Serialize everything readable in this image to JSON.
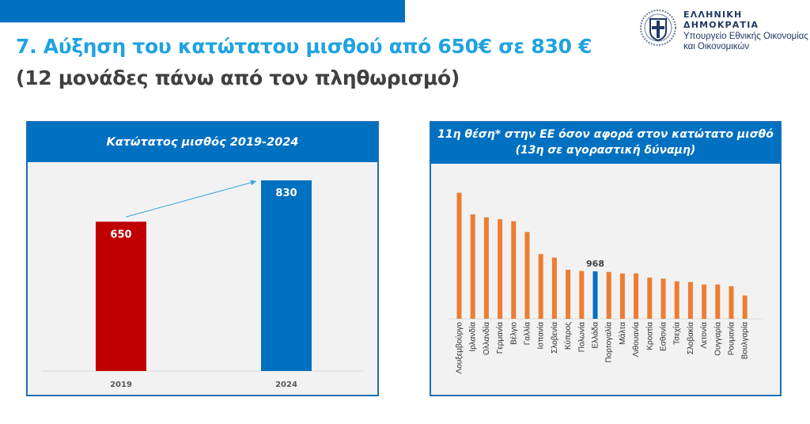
{
  "header": {
    "org_name": "ΕΛΛΗΝΙΚΗ ΔΗΜΟΚΡΑΤΙΑ",
    "ministry_line1": "Υπουργείο Εθνικής Οικονομίας",
    "ministry_line2": "και Οικονομικών",
    "logo_icon": "greek-coat-of-arms-icon"
  },
  "title": {
    "line1": "7. Αύξηση του κατώτατου μισθού από 650€ σε 830 €",
    "line2": "(12 μονάδες πάνω από τον πληθωρισμό)"
  },
  "colors": {
    "brand_blue": "#0070c0",
    "title_blue": "#1fa3e0",
    "red": "#c00000",
    "orange": "#ed7d31",
    "greece_blue": "#0070c0"
  },
  "chart_data": [
    {
      "type": "bar",
      "title": "Κατώτατος μισθός 2019-2024",
      "categories": [
        "2019",
        "2024"
      ],
      "values": [
        650,
        830
      ],
      "data_labels": [
        "650",
        "830"
      ],
      "bar_colors": [
        "#c00000",
        "#0070c0"
      ],
      "annotation": "arrow from 2019 bar to 2024 bar",
      "xlabel": "",
      "ylabel": "",
      "ylim": [
        0,
        900
      ],
      "grid": false
    },
    {
      "type": "bar",
      "title": "11η θέση* στην ΕΕ όσον αφορά στον κατώτατο μισθό",
      "subtitle": "(13η σε αγοραστική δύναμη)",
      "categories": [
        "Λουξεμβούργο",
        "Ιρλανδία",
        "Ολλανδία",
        "Γερμανία",
        "Βέλγιο",
        "Γαλλία",
        "Ισπανία",
        "Σλοβενία",
        "Κύπρος",
        "Πολωνία",
        "Ελλάδα",
        "Πορτογαλία",
        "Μάλτα",
        "Λιθουανία",
        "Κροατία",
        "Εσθονία",
        "Τσεχία",
        "Σλοβακία",
        "Λετονία",
        "Ουγγαρία",
        "Ρουμανία",
        "Βουλγαρία"
      ],
      "values": [
        2570,
        2130,
        2070,
        2030,
        1990,
        1770,
        1320,
        1250,
        1000,
        975,
        968,
        955,
        925,
        925,
        840,
        820,
        765,
        750,
        700,
        700,
        665,
        475
      ],
      "highlight": {
        "category": "Ελλάδα",
        "label": "968",
        "color": "#0070c0"
      },
      "bar_color": "#ed7d31",
      "xlabel": "",
      "ylabel": "",
      "ylim": [
        0,
        2700
      ],
      "grid": false
    }
  ]
}
